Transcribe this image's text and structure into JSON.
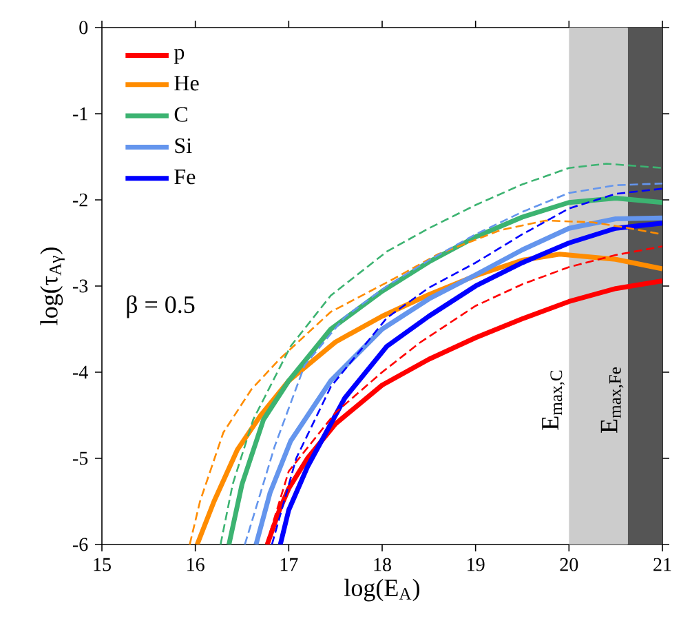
{
  "chart_data": {
    "type": "line",
    "xlabel": "log(E$_{A}$)",
    "ylabel": "log(τ$_{Aγ}$)",
    "xlim": [
      15,
      21
    ],
    "ylim": [
      -6,
      0
    ],
    "xticks": [
      15,
      16,
      17,
      18,
      19,
      20,
      21
    ],
    "yticks": [
      -6,
      -5,
      -4,
      -3,
      -2,
      -1,
      0
    ],
    "legend": "top left",
    "line_style": "solid",
    "series": [
      {
        "name": "p",
        "color": "#ff0000",
        "x": [
          16.77,
          16.9,
          17.0,
          17.2,
          17.5,
          18.0,
          18.5,
          19.0,
          19.5,
          20.0,
          20.5,
          21.0
        ],
        "values": [
          -6,
          -5.6,
          -5.35,
          -5.0,
          -4.6,
          -4.15,
          -3.85,
          -3.6,
          -3.38,
          -3.18,
          -3.03,
          -2.94
        ]
      },
      {
        "name": "He",
        "color": "#ff8c00",
        "x": [
          16.02,
          16.2,
          16.45,
          16.7,
          17.0,
          17.5,
          18.0,
          18.5,
          19.0,
          19.5,
          19.9,
          20.5,
          21.0
        ],
        "values": [
          -6,
          -5.5,
          -4.9,
          -4.5,
          -4.1,
          -3.65,
          -3.35,
          -3.1,
          -2.88,
          -2.7,
          -2.63,
          -2.69,
          -2.8
        ]
      },
      {
        "name": "C",
        "color": "#3cb371",
        "x": [
          16.36,
          16.5,
          16.73,
          17.0,
          17.45,
          18.0,
          18.5,
          19.0,
          19.5,
          20.0,
          20.5,
          21.0
        ],
        "values": [
          -6,
          -5.3,
          -4.55,
          -4.1,
          -3.5,
          -3.06,
          -2.72,
          -2.43,
          -2.2,
          -2.03,
          -1.98,
          -2.03
        ]
      },
      {
        "name": "Si",
        "color": "#6495ed",
        "x": [
          16.65,
          16.8,
          17.02,
          17.45,
          18.0,
          18.5,
          19.0,
          19.5,
          20.0,
          20.5,
          21.0
        ],
        "values": [
          -6,
          -5.4,
          -4.8,
          -4.1,
          -3.5,
          -3.15,
          -2.87,
          -2.58,
          -2.33,
          -2.22,
          -2.21
        ]
      },
      {
        "name": "Fe",
        "color": "#0000ff",
        "x": [
          16.91,
          17.0,
          17.2,
          17.6,
          18.05,
          18.5,
          19.0,
          19.5,
          20.0,
          20.5,
          21.0
        ],
        "values": [
          -6,
          -5.6,
          -5.1,
          -4.3,
          -3.7,
          -3.35,
          -3.0,
          -2.73,
          -2.5,
          -2.33,
          -2.27
        ]
      },
      {
        "color": "#ff0000",
        "line_style": "dashed",
        "x": [
          16.76,
          17.0,
          17.5,
          18.0,
          18.4,
          19.0,
          19.5,
          20.0,
          20.5,
          21.0
        ],
        "values": [
          -6,
          -5.15,
          -4.47,
          -4.0,
          -3.66,
          -3.23,
          -2.98,
          -2.78,
          -2.64,
          -2.54
        ]
      },
      {
        "color": "#ff8c00",
        "line_style": "dashed",
        "x": [
          15.94,
          16.05,
          16.3,
          16.6,
          16.9,
          17.45,
          18.1,
          18.6,
          19.27,
          19.75,
          20.25,
          20.6,
          21.0
        ],
        "values": [
          -6,
          -5.5,
          -4.7,
          -4.2,
          -3.85,
          -3.3,
          -2.93,
          -2.63,
          -2.35,
          -2.24,
          -2.26,
          -2.32,
          -2.4
        ]
      },
      {
        "color": "#3cb371",
        "line_style": "dashed",
        "x": [
          16.27,
          16.4,
          16.62,
          17.02,
          17.45,
          18.05,
          18.5,
          19.0,
          19.5,
          20.0,
          20.4,
          21.0
        ],
        "values": [
          -6,
          -5.3,
          -4.55,
          -3.7,
          -3.11,
          -2.6,
          -2.33,
          -2.06,
          -1.82,
          -1.63,
          -1.58,
          -1.63
        ]
      },
      {
        "color": "#6495ed",
        "line_style": "dashed",
        "x": [
          16.53,
          16.85,
          17.17,
          17.6,
          18.05,
          18.5,
          19.0,
          19.5,
          20.0,
          20.5,
          21.0
        ],
        "values": [
          -6,
          -4.86,
          -3.92,
          -3.36,
          -3.0,
          -2.7,
          -2.4,
          -2.14,
          -1.92,
          -1.83,
          -1.81
        ]
      },
      {
        "color": "#0000ff",
        "line_style": "dashed",
        "x": [
          16.82,
          17.08,
          17.45,
          18.05,
          18.5,
          19.0,
          19.5,
          20.0,
          20.5,
          21.0
        ],
        "values": [
          -6,
          -5.0,
          -4.17,
          -3.37,
          -3.02,
          -2.73,
          -2.4,
          -2.1,
          -1.93,
          -1.87
        ]
      }
    ],
    "bands": [
      {
        "axis": "x",
        "from": 20,
        "to": 20.63,
        "label": "E$_{max,C}$",
        "color": "#cccccc"
      },
      {
        "axis": "x",
        "from": 20.63,
        "to": 21,
        "label": "E$_{max,Fe}$",
        "color": "#555555"
      }
    ],
    "annotations": [
      "β = 0.5"
    ]
  }
}
